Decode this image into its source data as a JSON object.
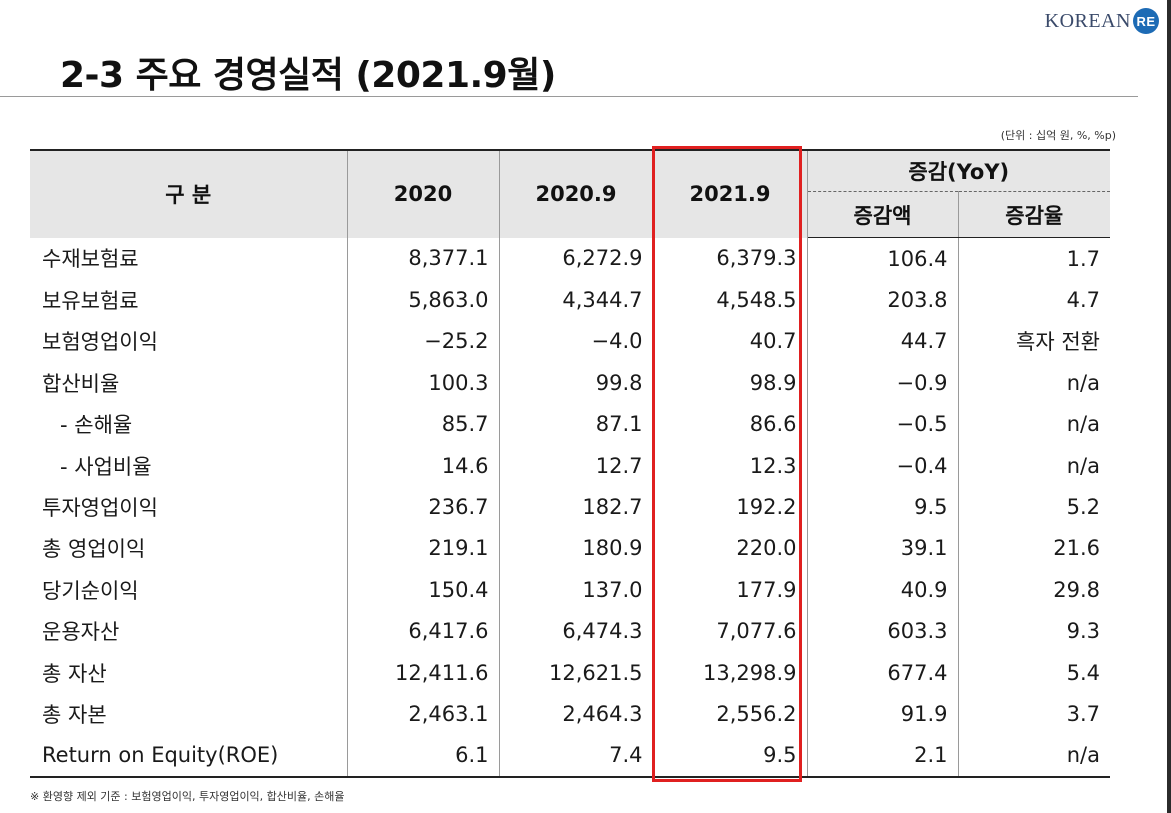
{
  "logo": {
    "text": "KOREAN",
    "mark": "RE"
  },
  "title": "2-3 주요 경영실적 (2021.9월)",
  "unit": "(단위 : 십억 원, %, %p)",
  "headers": {
    "gubun": "구 분",
    "y2020": "2020",
    "y2020_9": "2020.9",
    "y2021_9": "2021.9",
    "yoy": "증감(YoY)",
    "diff": "증감액",
    "rate": "증감율"
  },
  "rows": [
    {
      "label": "수재보험료",
      "v2020": "8,377.1",
      "v2020_9": "6,272.9",
      "v2021_9": "6,379.3",
      "diff": "106.4",
      "rate": "1.7"
    },
    {
      "label": "보유보험료",
      "v2020": "5,863.0",
      "v2020_9": "4,344.7",
      "v2021_9": "4,548.5",
      "diff": "203.8",
      "rate": "4.7"
    },
    {
      "label": "보험영업이익",
      "v2020": "−25.2",
      "v2020_9": "−4.0",
      "v2021_9": "40.7",
      "diff": "44.7",
      "rate": "흑자 전환"
    },
    {
      "label": "합산비율",
      "v2020": "100.3",
      "v2020_9": "99.8",
      "v2021_9": "98.9",
      "diff": "−0.9",
      "rate": "n/a"
    },
    {
      "label": "- 손해율",
      "v2020": "85.7",
      "v2020_9": "87.1",
      "v2021_9": "86.6",
      "diff": "−0.5",
      "rate": "n/a"
    },
    {
      "label": "- 사업비율",
      "v2020": "14.6",
      "v2020_9": "12.7",
      "v2021_9": "12.3",
      "diff": "−0.4",
      "rate": "n/a"
    },
    {
      "label": "투자영업이익",
      "v2020": "236.7",
      "v2020_9": "182.7",
      "v2021_9": "192.2",
      "diff": "9.5",
      "rate": "5.2"
    },
    {
      "label": "총 영업이익",
      "v2020": "219.1",
      "v2020_9": "180.9",
      "v2021_9": "220.0",
      "diff": "39.1",
      "rate": "21.6"
    },
    {
      "label": "당기순이익",
      "v2020": "150.4",
      "v2020_9": "137.0",
      "v2021_9": "177.9",
      "diff": "40.9",
      "rate": "29.8"
    },
    {
      "label": "운용자산",
      "v2020": "6,417.6",
      "v2020_9": "6,474.3",
      "v2021_9": "7,077.6",
      "diff": "603.3",
      "rate": "9.3"
    },
    {
      "label": "총 자산",
      "v2020": "12,411.6",
      "v2020_9": "12,621.5",
      "v2021_9": "13,298.9",
      "diff": "677.4",
      "rate": "5.4"
    },
    {
      "label": "총 자본",
      "v2020": "2,463.1",
      "v2020_9": "2,464.3",
      "v2021_9": "2,556.2",
      "diff": "91.9",
      "rate": "3.7"
    },
    {
      "label": "Return on Equity(ROE)",
      "v2020": "6.1",
      "v2020_9": "7.4",
      "v2021_9": "9.5",
      "diff": "2.1",
      "rate": "n/a"
    }
  ],
  "footnote": "※ 환영향 제외 기준 : 보험영업이익, 투자영업이익, 합산비율, 손해율",
  "colors": {
    "highlight": "#e02020",
    "header_bg": "#e6e6e6",
    "logo_blue": "#1d6bb5"
  }
}
